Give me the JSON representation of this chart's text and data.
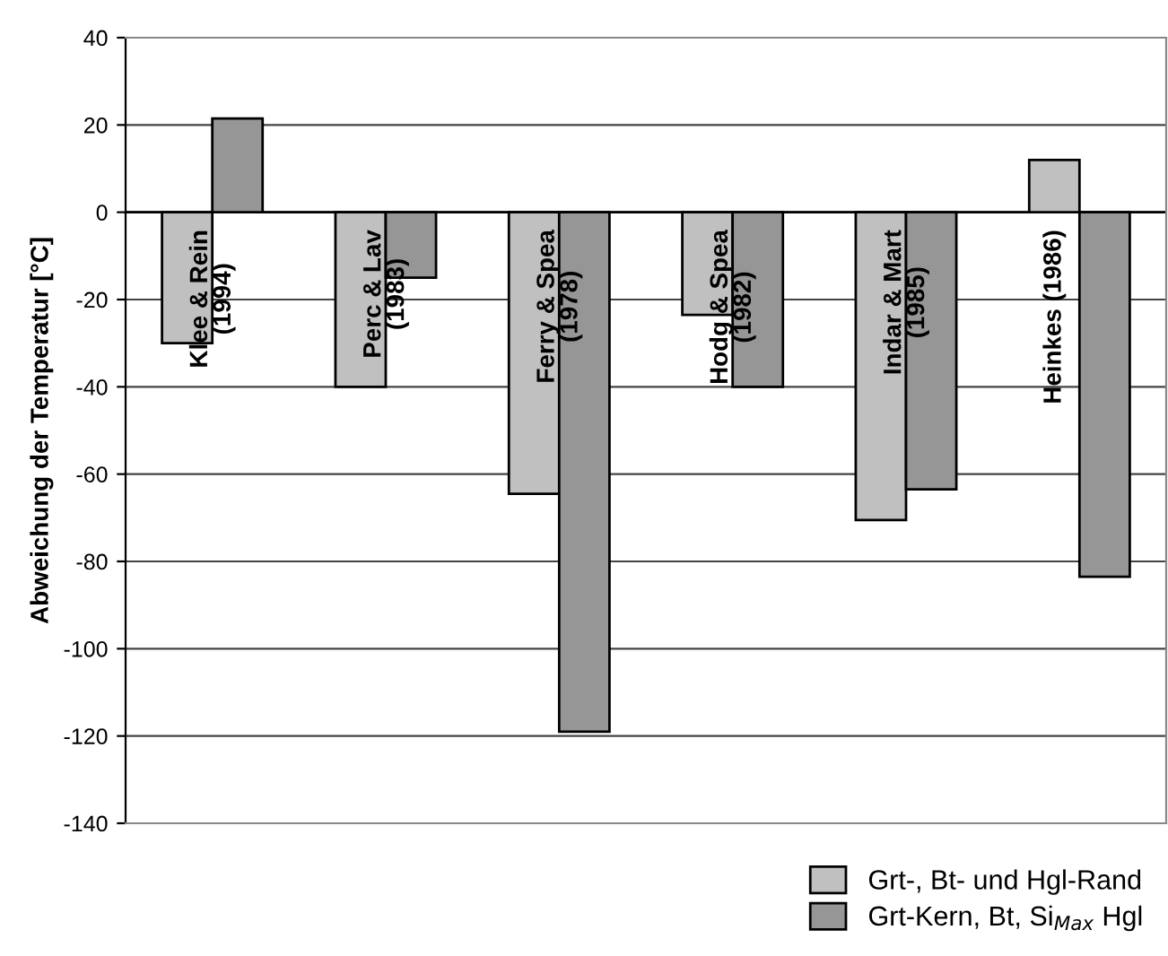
{
  "chart_data": {
    "type": "bar",
    "ylabel": "Abweichung der Temperatur [°C]",
    "categories": [
      "Klee & Rein\n(1994)",
      "Perc & Lav\n(1983)",
      "Ferry & Spea\n(1978)",
      "Hodg & Spea\n(1982)",
      "Indar & Mart\n(1985)",
      "Heinkes (1986)"
    ],
    "series": [
      {
        "name": "Grt-, Bt- und Hgl-Rand",
        "color": "#c0c0c0",
        "values": [
          -30,
          -40,
          -64.5,
          -23.5,
          -70.5,
          12
        ]
      },
      {
        "name": "Grt-Kern, Bt, Si$_{Max}$ Hgl",
        "color": "#969696",
        "values": [
          21.5,
          -15,
          -119,
          -40,
          -63.5,
          -83.5
        ]
      }
    ],
    "ylim": [
      -140,
      40
    ],
    "yticks": [
      -140,
      -120,
      -100,
      -80,
      -60,
      -40,
      -20,
      0,
      20,
      40
    ],
    "grid": "y",
    "legend": "bottom right"
  }
}
